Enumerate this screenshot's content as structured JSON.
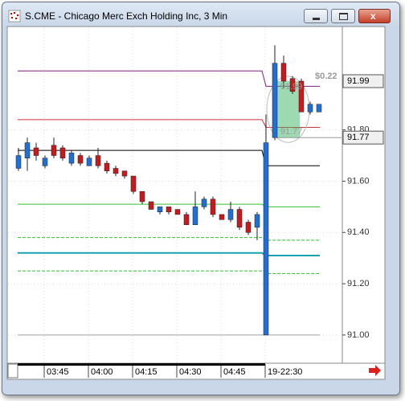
{
  "chart_data": {
    "type": "candlestick",
    "title": "S.CME - Chicago Merc Exch Holding Inc, 3 Min",
    "categories": [
      null,
      null,
      null,
      "03:45",
      null,
      null,
      null,
      null,
      "04:00",
      null,
      null,
      null,
      null,
      "04:15",
      null,
      null,
      null,
      null,
      "04:30",
      null,
      null,
      null,
      null,
      "04:45",
      null,
      null,
      null,
      null,
      "19-22:30",
      null,
      null,
      null,
      null,
      null,
      null
    ],
    "open": [
      91.65,
      91.69,
      91.73,
      91.66,
      91.74,
      91.73,
      91.67,
      91.7,
      91.66,
      91.7,
      91.67,
      91.65,
      91.64,
      91.62,
      91.56,
      91.52,
      91.48,
      91.5,
      91.49,
      91.47,
      91.43,
      91.5,
      91.53,
      91.47,
      91.45,
      91.49,
      91.44,
      91.42,
      91.0,
      91.77,
      92.06,
      92.0,
      91.99,
      91.87,
      91.87
    ],
    "high": [
      91.73,
      91.77,
      91.75,
      91.7,
      91.77,
      91.74,
      91.72,
      91.71,
      91.7,
      91.73,
      91.68,
      91.66,
      91.64,
      91.62,
      91.56,
      91.52,
      91.5,
      91.5,
      91.49,
      91.48,
      91.56,
      91.54,
      91.54,
      91.47,
      91.52,
      91.5,
      91.45,
      91.48,
      91.86,
      92.13,
      92.09,
      92.01,
      92.0,
      91.91,
      91.9
    ],
    "low": [
      91.64,
      91.64,
      91.68,
      91.65,
      91.69,
      91.68,
      91.66,
      91.66,
      91.66,
      91.65,
      91.63,
      91.62,
      91.61,
      91.55,
      91.51,
      91.49,
      91.47,
      91.47,
      91.47,
      91.43,
      91.43,
      91.49,
      91.46,
      91.45,
      91.44,
      91.41,
      91.39,
      91.37,
      91.0,
      91.76,
      91.96,
      91.94,
      91.87,
      91.86,
      91.87
    ],
    "close": [
      91.7,
      91.75,
      91.7,
      91.69,
      91.7,
      91.69,
      91.71,
      91.67,
      91.69,
      91.66,
      91.64,
      91.63,
      91.62,
      91.56,
      91.52,
      91.49,
      91.5,
      91.48,
      91.47,
      91.43,
      91.5,
      91.53,
      91.47,
      91.45,
      91.49,
      91.42,
      91.4,
      91.47,
      91.75,
      92.06,
      91.99,
      91.95,
      91.87,
      91.9,
      91.9
    ],
    "up_color": "#1f6fd6",
    "down_color": "#c8191e",
    "lines": [
      {
        "color": "#7b1f7b",
        "dashed": false,
        "width": 1,
        "values": [
          92.03,
          91.97
        ]
      },
      {
        "color": "#d0303a",
        "dashed": false,
        "width": 1,
        "values": [
          91.84,
          91.81
        ]
      },
      {
        "color": "#000000",
        "dashed": false,
        "width": 1,
        "values": [
          91.72,
          91.66
        ]
      },
      {
        "color": "#2ec42e",
        "dashed": false,
        "width": 1,
        "values": [
          91.51,
          91.5
        ]
      },
      {
        "color": "#2ec42e",
        "dashed": true,
        "width": 1,
        "values": [
          91.38,
          91.37
        ]
      },
      {
        "color": "#1aa0b4",
        "dashed": false,
        "width": 2,
        "values": [
          91.32,
          91.31
        ]
      },
      {
        "color": "#2ec42e",
        "dashed": true,
        "width": 1,
        "values": [
          91.25,
          91.24
        ]
      },
      {
        "color": "#a0a0a0",
        "dashed": false,
        "width": 1,
        "values": [
          91.0,
          91.0
        ]
      }
    ],
    "ylim": [
      90.89,
      92.2
    ],
    "yticks": [
      {
        "value": 91.0,
        "label": "91.00"
      },
      {
        "value": 91.2,
        "label": "91.20"
      },
      {
        "value": 91.4,
        "label": "91.40"
      },
      {
        "value": 91.6,
        "label": "91.60"
      },
      {
        "value": 91.8,
        "label": "91.80"
      }
    ],
    "price_markers": [
      91.99,
      91.77
    ],
    "measure": {
      "high": 91.99,
      "low": 91.77,
      "change": 0.22,
      "change_label": "$0.22"
    },
    "grid": true
  }
}
